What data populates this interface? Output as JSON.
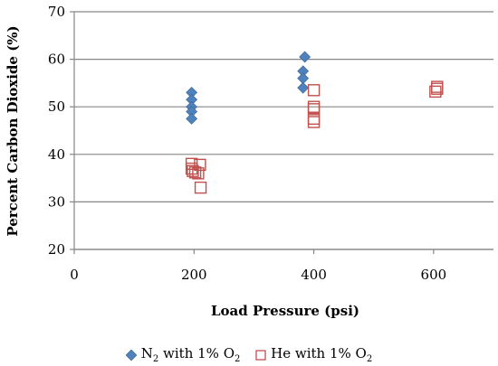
{
  "chart_data": {
    "type": "scatter",
    "xlabel": "Load Pressure (psi)",
    "ylabel": "Percent Carbon Dioxide (%)",
    "xlim": [
      0,
      700
    ],
    "ylim": [
      20,
      70
    ],
    "x_ticks": [
      "0",
      "200",
      "400",
      "600"
    ],
    "y_ticks": [
      "20",
      "30",
      "40",
      "50",
      "60",
      "70"
    ],
    "grid": "horizontal",
    "legend_position": "bottom",
    "series": [
      {
        "name": "N2 with 1% O2",
        "marker": "diamond",
        "color": "#4F81BD",
        "points": [
          [
            196,
            53.0
          ],
          [
            196,
            51.5
          ],
          [
            196,
            50.0
          ],
          [
            196,
            49.0
          ],
          [
            196,
            47.5
          ],
          [
            385,
            60.5
          ],
          [
            382,
            57.5
          ],
          [
            382,
            56.0
          ],
          [
            382,
            54.0
          ]
        ]
      },
      {
        "name": "He with 1% O2",
        "marker": "square-open",
        "color": "#C0504D",
        "points": [
          [
            196,
            38.0
          ],
          [
            196,
            37.0
          ],
          [
            198,
            36.5
          ],
          [
            202,
            36.2
          ],
          [
            210,
            37.8
          ],
          [
            207,
            36.0
          ],
          [
            211,
            33.0
          ],
          [
            400,
            53.5
          ],
          [
            400,
            50.0
          ],
          [
            400,
            49.5
          ],
          [
            400,
            47.5
          ],
          [
            400,
            46.8
          ],
          [
            603,
            53.2
          ],
          [
            606,
            54.2
          ],
          [
            606,
            53.8
          ]
        ]
      }
    ]
  },
  "legend": {
    "n2": {
      "main": "N",
      "sub": "2",
      "rest": " with 1% O",
      "sub2": "2"
    },
    "he": {
      "main": "He with 1% O",
      "sub": "2"
    }
  }
}
